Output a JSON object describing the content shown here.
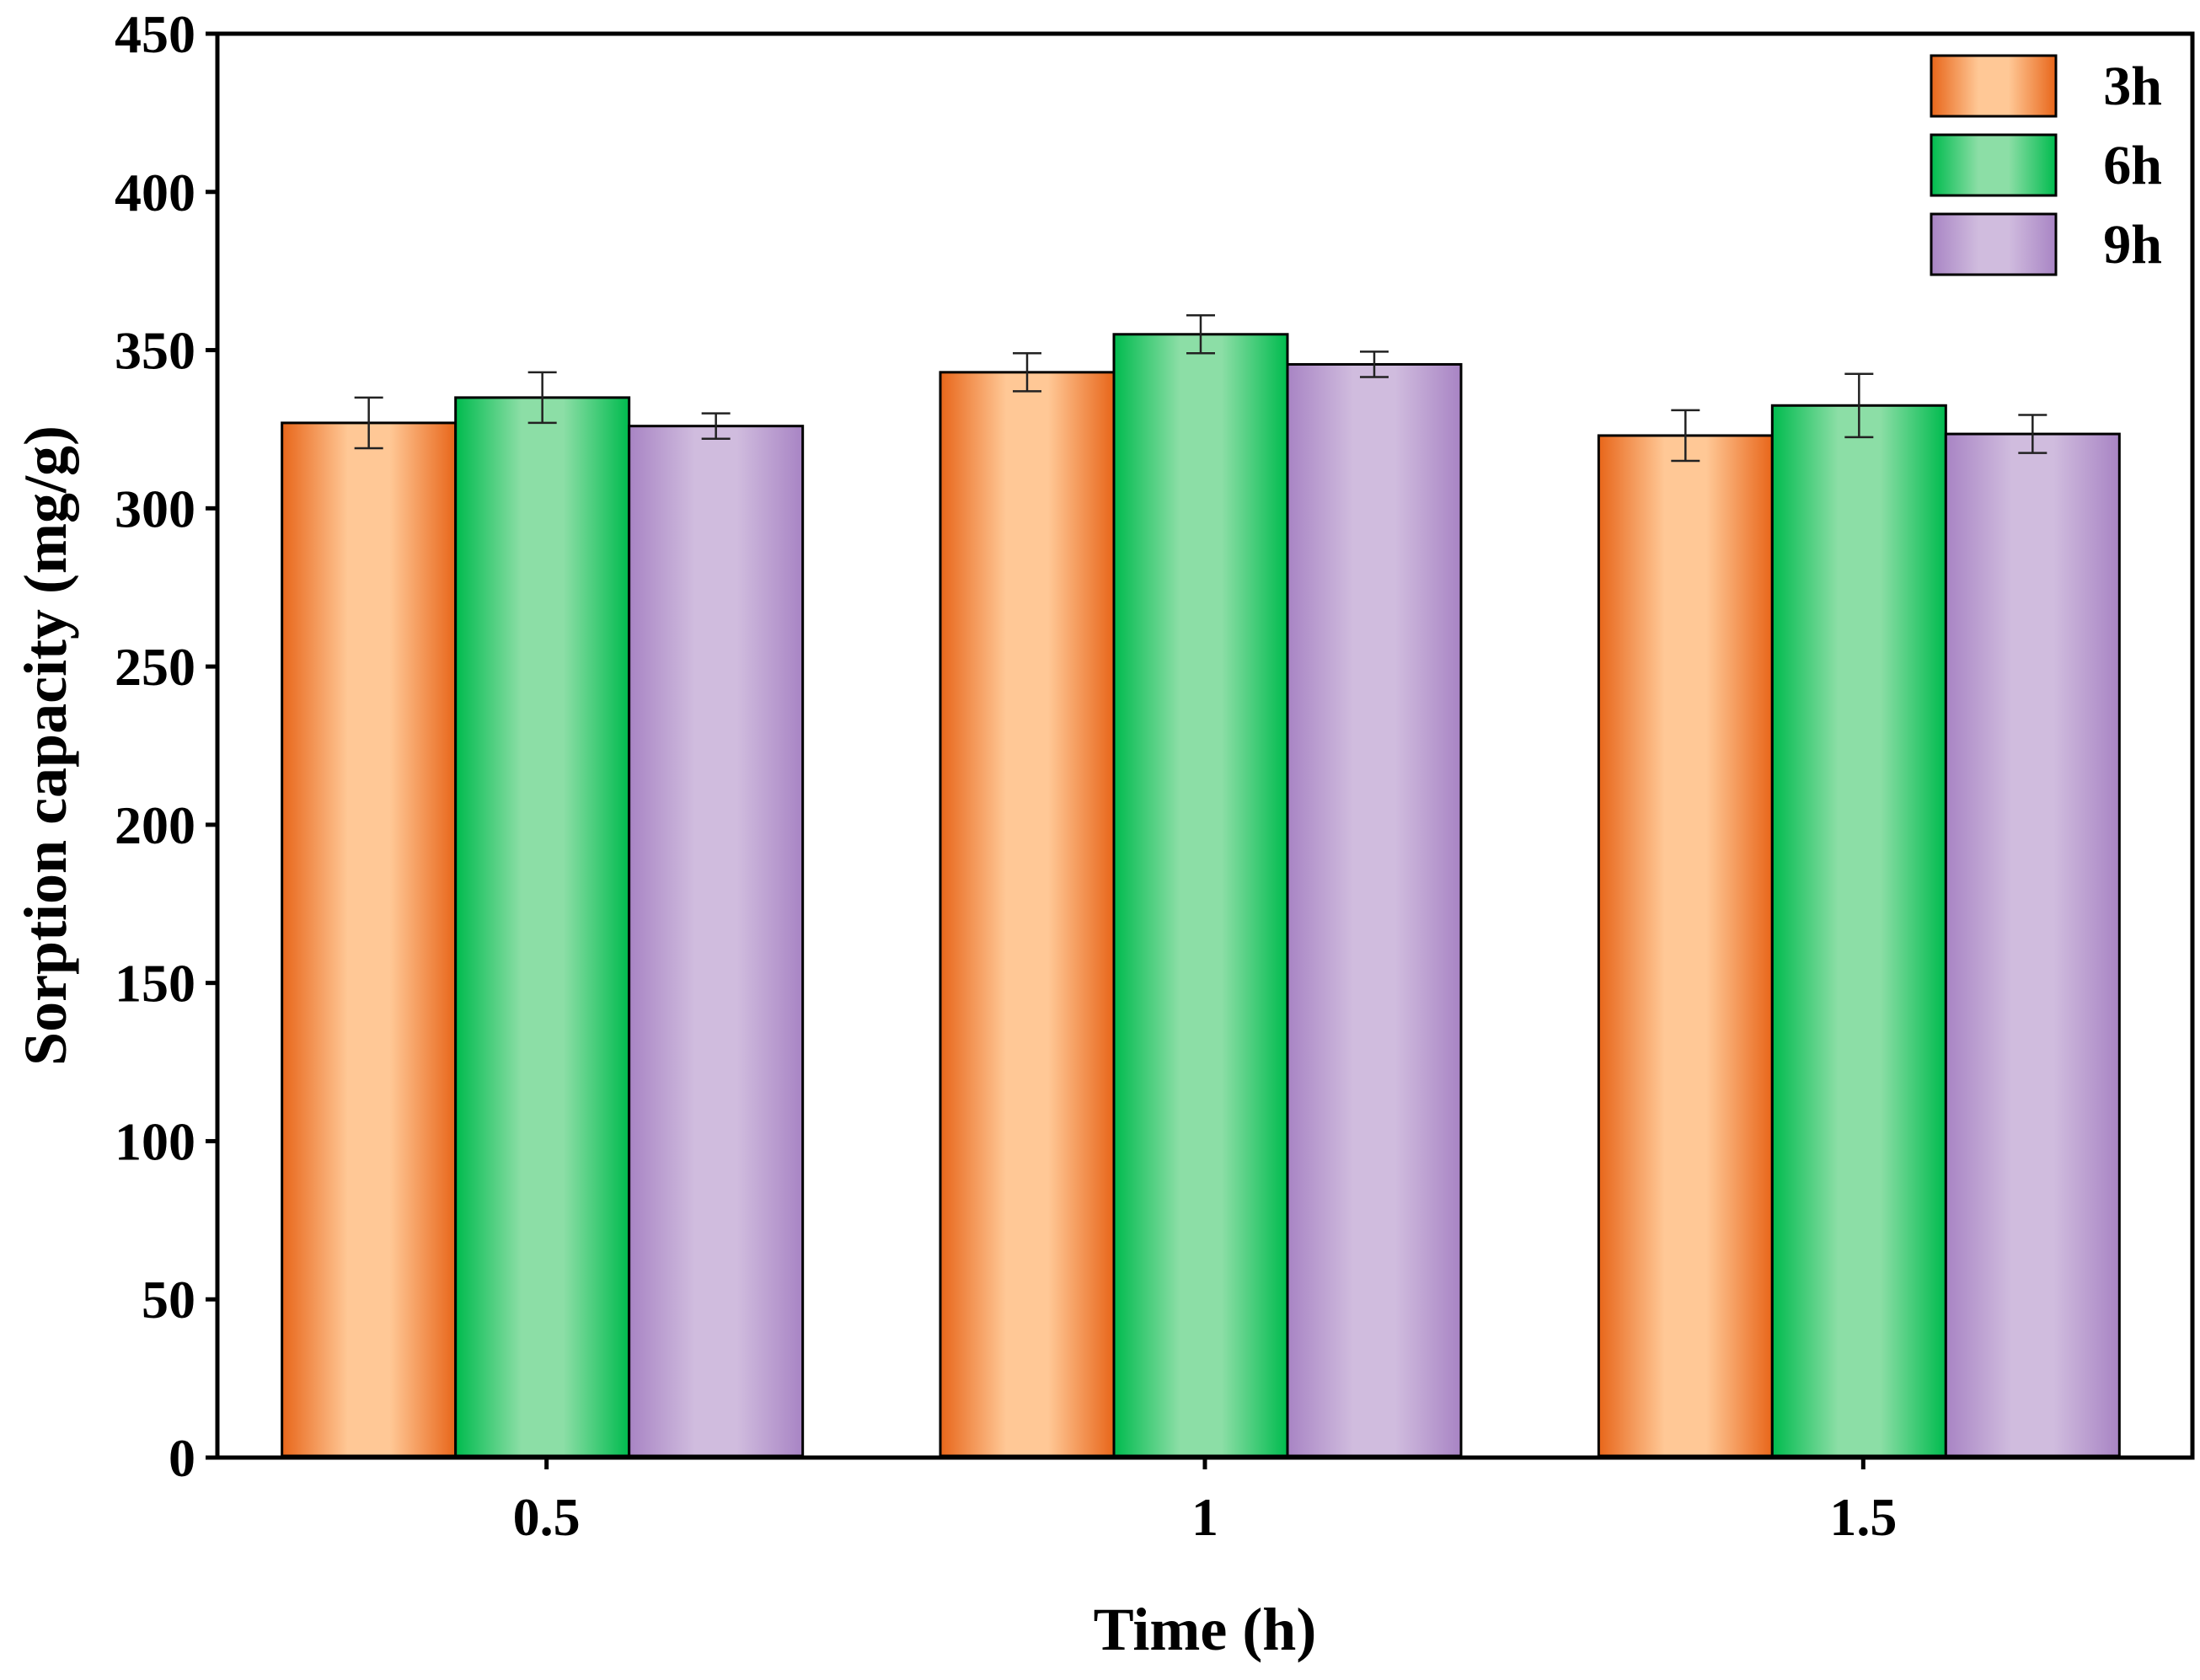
{
  "chart_data": {
    "type": "bar",
    "title": "",
    "xlabel": "Time (h)",
    "ylabel": "Sorption capacity (mg/g)",
    "categories": [
      "0.5",
      "1",
      "1.5"
    ],
    "ylim": [
      0,
      450
    ],
    "yticks": [
      "0",
      "50",
      "100",
      "150",
      "200",
      "250",
      "300",
      "350",
      "400",
      "450"
    ],
    "legend_position": "top-right",
    "series": [
      {
        "name": "3h",
        "values": [
          327,
          343,
          323
        ],
        "errors": [
          8,
          6,
          8
        ],
        "color_dark": "#e8661a",
        "color_light": "#ffc896"
      },
      {
        "name": "6h",
        "values": [
          335,
          355,
          332.5
        ],
        "errors": [
          8,
          6,
          10
        ],
        "color_dark": "#00bb4e",
        "color_light": "#8cdea6"
      },
      {
        "name": "9h",
        "values": [
          326,
          345.5,
          323.5
        ],
        "errors": [
          4,
          4,
          6
        ],
        "color_dark": "#a884c4",
        "color_light": "#d0bcde"
      }
    ]
  }
}
